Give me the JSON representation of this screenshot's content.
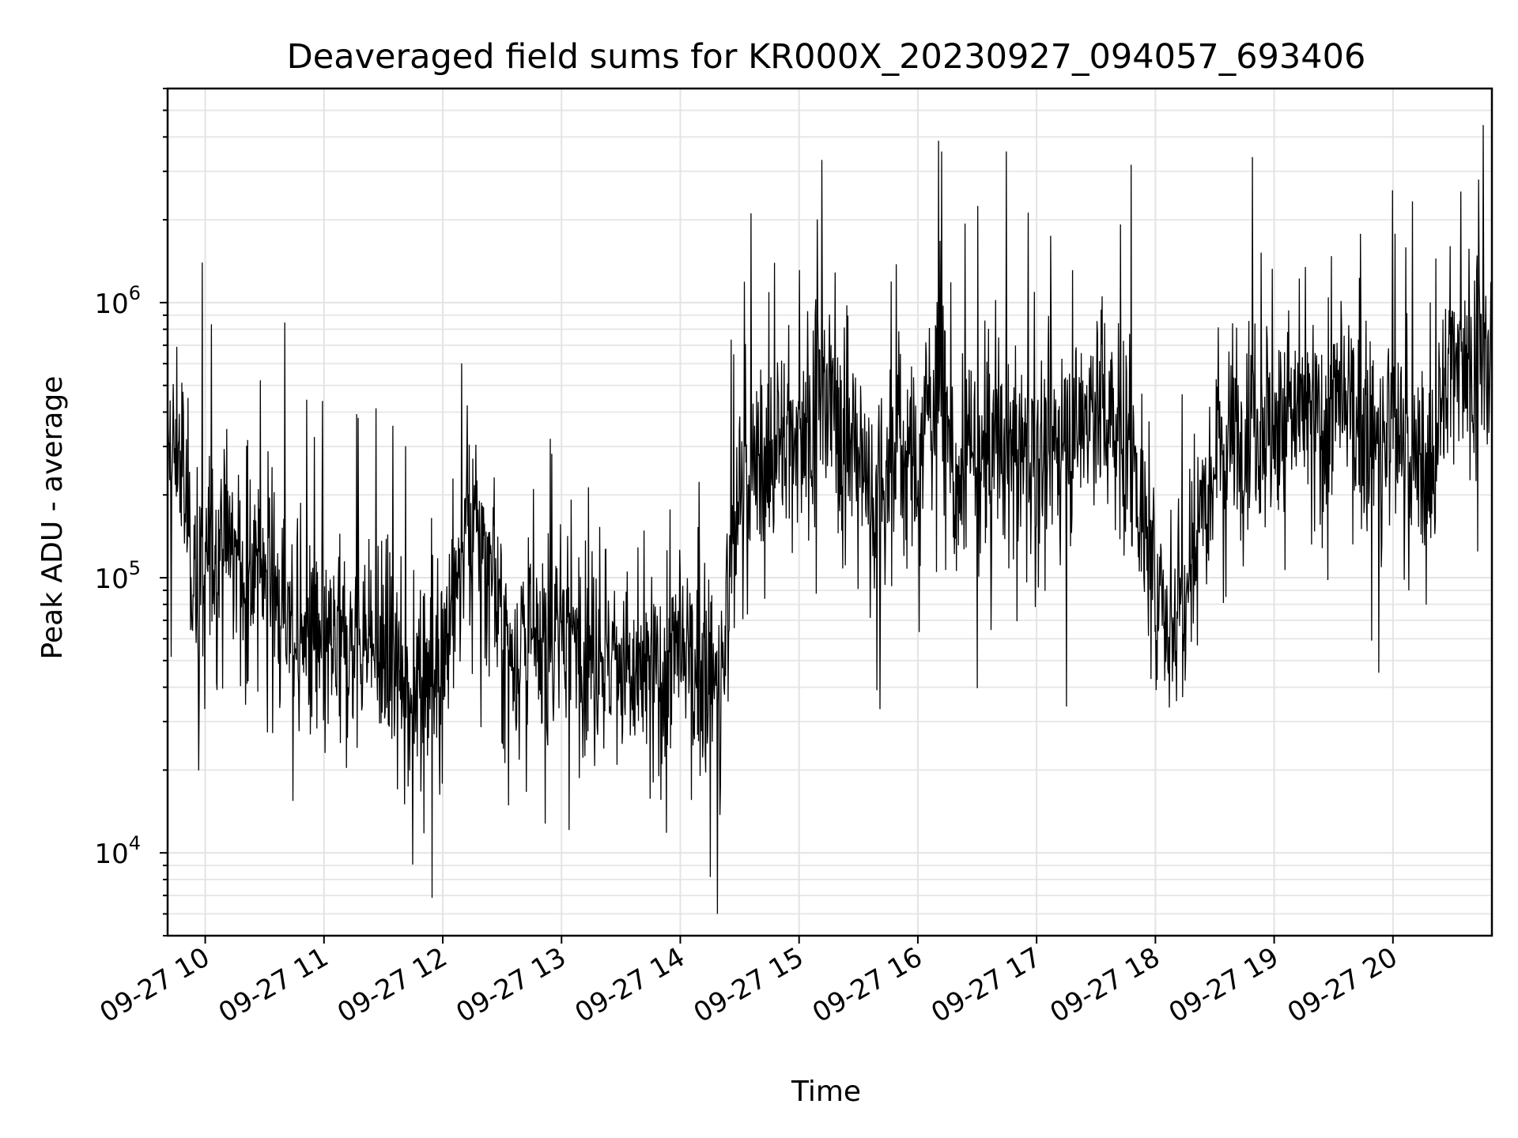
{
  "chart_data": {
    "type": "line",
    "title": "Deaveraged field sums for KR000X_20230927_094057_693406",
    "xlabel": "Time",
    "ylabel": "Peak ADU - average",
    "yscale": "log",
    "ylim": [
      5000,
      6000000
    ],
    "xlim": [
      "2023-09-27 09:41",
      "2023-09-27 20:50"
    ],
    "grid": true,
    "x_ticks": [
      {
        "value": "2023-09-27 10:00",
        "label": "09-27 10"
      },
      {
        "value": "2023-09-27 11:00",
        "label": "09-27 11"
      },
      {
        "value": "2023-09-27 12:00",
        "label": "09-27 12"
      },
      {
        "value": "2023-09-27 13:00",
        "label": "09-27 13"
      },
      {
        "value": "2023-09-27 14:00",
        "label": "09-27 14"
      },
      {
        "value": "2023-09-27 15:00",
        "label": "09-27 15"
      },
      {
        "value": "2023-09-27 16:00",
        "label": "09-27 16"
      },
      {
        "value": "2023-09-27 17:00",
        "label": "09-27 17"
      },
      {
        "value": "2023-09-27 18:00",
        "label": "09-27 18"
      },
      {
        "value": "2023-09-27 19:00",
        "label": "09-27 19"
      },
      {
        "value": "2023-09-27 20:00",
        "label": "09-27 20"
      }
    ],
    "y_ticks": [
      {
        "value": 10000,
        "base": "10",
        "exp": "4"
      },
      {
        "value": 100000,
        "base": "10",
        "exp": "5"
      },
      {
        "value": 1000000,
        "base": "10",
        "exp": "6"
      }
    ],
    "series": [
      {
        "color": "#000000",
        "x": [
          "2023-09-27 09:41",
          "2023-09-27 09:47",
          "2023-09-27 09:53",
          "2023-09-27 10:00",
          "2023-09-27 10:10",
          "2023-09-27 10:20",
          "2023-09-27 10:30",
          "2023-09-27 10:40",
          "2023-09-27 10:50",
          "2023-09-27 11:00",
          "2023-09-27 11:10",
          "2023-09-27 11:20",
          "2023-09-27 11:30",
          "2023-09-27 11:40",
          "2023-09-27 11:50",
          "2023-09-27 12:00",
          "2023-09-27 12:10",
          "2023-09-27 12:20",
          "2023-09-27 12:30",
          "2023-09-27 12:40",
          "2023-09-27 12:50",
          "2023-09-27 13:00",
          "2023-09-27 13:10",
          "2023-09-27 13:20",
          "2023-09-27 13:30",
          "2023-09-27 13:40",
          "2023-09-27 13:50",
          "2023-09-27 14:00",
          "2023-09-27 14:10",
          "2023-09-27 14:20",
          "2023-09-27 14:30",
          "2023-09-27 14:40",
          "2023-09-27 14:50",
          "2023-09-27 15:00",
          "2023-09-27 15:10",
          "2023-09-27 15:20",
          "2023-09-27 15:30",
          "2023-09-27 15:40",
          "2023-09-27 15:50",
          "2023-09-27 16:00",
          "2023-09-27 16:10",
          "2023-09-27 16:20",
          "2023-09-27 16:30",
          "2023-09-27 16:40",
          "2023-09-27 16:50",
          "2023-09-27 17:00",
          "2023-09-27 17:10",
          "2023-09-27 17:20",
          "2023-09-27 17:30",
          "2023-09-27 17:40",
          "2023-09-27 17:50",
          "2023-09-27 18:00",
          "2023-09-27 18:10",
          "2023-09-27 18:20",
          "2023-09-27 18:30",
          "2023-09-27 18:40",
          "2023-09-27 18:50",
          "2023-09-27 19:00",
          "2023-09-27 19:10",
          "2023-09-27 19:20",
          "2023-09-27 19:30",
          "2023-09-27 19:40",
          "2023-09-27 19:50",
          "2023-09-27 20:00",
          "2023-09-27 20:10",
          "2023-09-27 20:20",
          "2023-09-27 20:30",
          "2023-09-27 20:40",
          "2023-09-27 20:50"
        ],
        "y": [
          250000,
          300000,
          120000,
          100000,
          150000,
          90000,
          120000,
          70000,
          60000,
          50000,
          55000,
          60000,
          50000,
          40000,
          45000,
          55000,
          120000,
          150000,
          60000,
          55000,
          50000,
          70000,
          60000,
          55000,
          45000,
          40000,
          45000,
          50000,
          45000,
          40000,
          200000,
          250000,
          300000,
          350000,
          450000,
          400000,
          250000,
          200000,
          300000,
          250000,
          600000,
          200000,
          250000,
          300000,
          300000,
          250000,
          300000,
          350000,
          450000,
          350000,
          250000,
          80000,
          70000,
          150000,
          300000,
          350000,
          400000,
          350000,
          400000,
          350000,
          400000,
          400000,
          300000,
          350000,
          250000,
          250000,
          700000,
          650000,
          550000
        ]
      }
    ]
  }
}
